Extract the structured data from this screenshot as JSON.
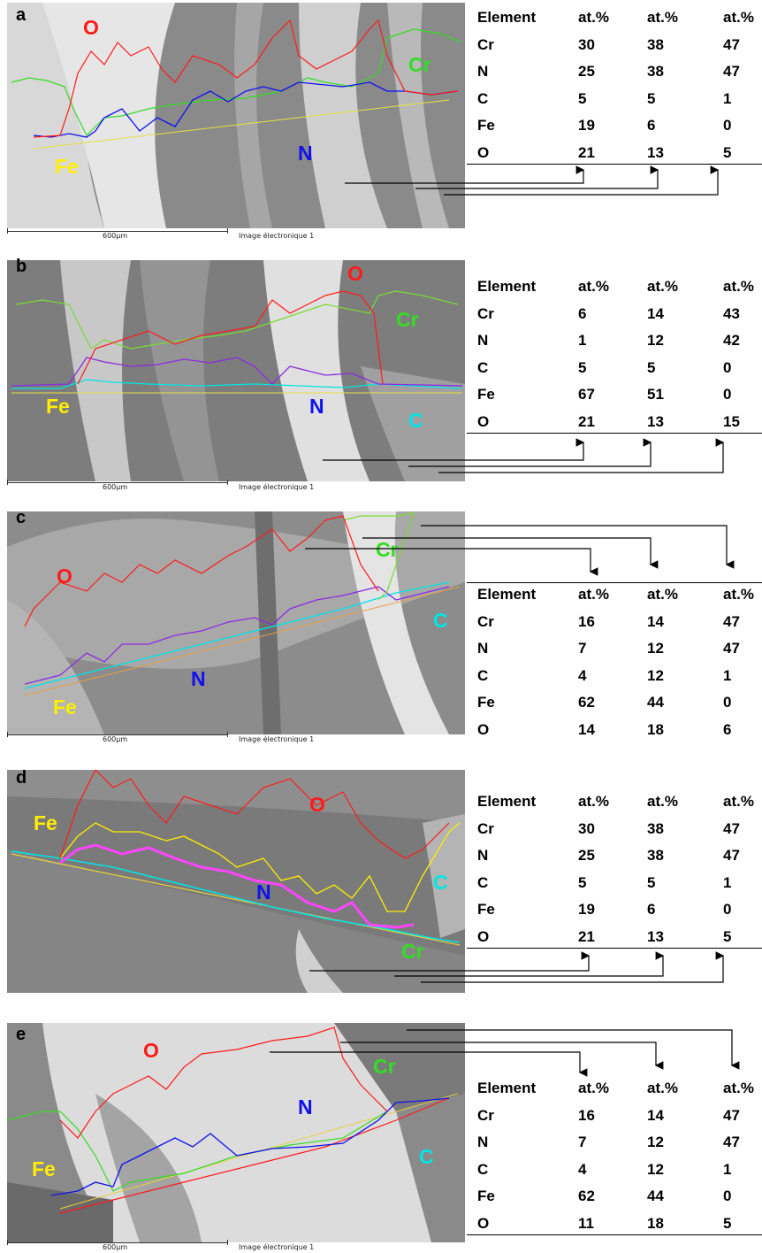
{
  "scale": {
    "bar_label": "600µm",
    "caption": "Image électronique 1"
  },
  "table_header": [
    "Element",
    "at.%",
    "at.%",
    "at.%"
  ],
  "panels": [
    {
      "letter": "a",
      "elements": {
        "O": "O",
        "Cr": "Cr",
        "Fe": "Fe",
        "N": "N"
      },
      "rows": [
        [
          "Cr",
          "30",
          "38",
          "47"
        ],
        [
          "N",
          "25",
          "38",
          "47"
        ],
        [
          "C",
          "5",
          "5",
          "1"
        ],
        [
          "Fe",
          "19",
          "6",
          "0"
        ],
        [
          "O",
          "21",
          "13",
          "5"
        ]
      ]
    },
    {
      "letter": "b",
      "elements": {
        "O": "O",
        "Cr": "Cr",
        "Fe": "Fe",
        "N": "N",
        "C": "C"
      },
      "rows": [
        [
          "Cr",
          "6",
          "14",
          "43"
        ],
        [
          "N",
          "1",
          "12",
          "42"
        ],
        [
          "C",
          "5",
          "5",
          "0"
        ],
        [
          "Fe",
          "67",
          "51",
          "0"
        ],
        [
          "O",
          "21",
          "13",
          "15"
        ]
      ]
    },
    {
      "letter": "c",
      "elements": {
        "O": "O",
        "Cr": "Cr",
        "Fe": "Fe",
        "N": "N",
        "C": "C"
      },
      "rows": [
        [
          "Cr",
          "16",
          "14",
          "47"
        ],
        [
          "N",
          "7",
          "12",
          "47"
        ],
        [
          "C",
          "4",
          "12",
          "1"
        ],
        [
          "Fe",
          "62",
          "44",
          "0"
        ],
        [
          "O",
          "14",
          "18",
          "6"
        ]
      ]
    },
    {
      "letter": "d",
      "elements": {
        "O": "O",
        "Cr": "Cr",
        "Fe": "Fe",
        "N": "N",
        "C": "C"
      },
      "rows": [
        [
          "Cr",
          "30",
          "38",
          "47"
        ],
        [
          "N",
          "25",
          "38",
          "47"
        ],
        [
          "C",
          "5",
          "5",
          "1"
        ],
        [
          "Fe",
          "19",
          "6",
          "0"
        ],
        [
          "O",
          "21",
          "13",
          "5"
        ]
      ]
    },
    {
      "letter": "e",
      "elements": {
        "O": "O",
        "Cr": "Cr",
        "Fe": "Fe",
        "N": "N",
        "C": "C"
      },
      "rows": [
        [
          "Cr",
          "16",
          "14",
          "47"
        ],
        [
          "N",
          "7",
          "12",
          "47"
        ],
        [
          "C",
          "4",
          "12",
          "1"
        ],
        [
          "Fe",
          "62",
          "44",
          "0"
        ],
        [
          "O",
          "11",
          "18",
          "5"
        ]
      ]
    }
  ],
  "colors": {
    "O": "#ff1a1a",
    "Cr": "#33dd22",
    "Fe": "#ffee00",
    "N": "#1010ee",
    "C": "#00e5e5"
  }
}
